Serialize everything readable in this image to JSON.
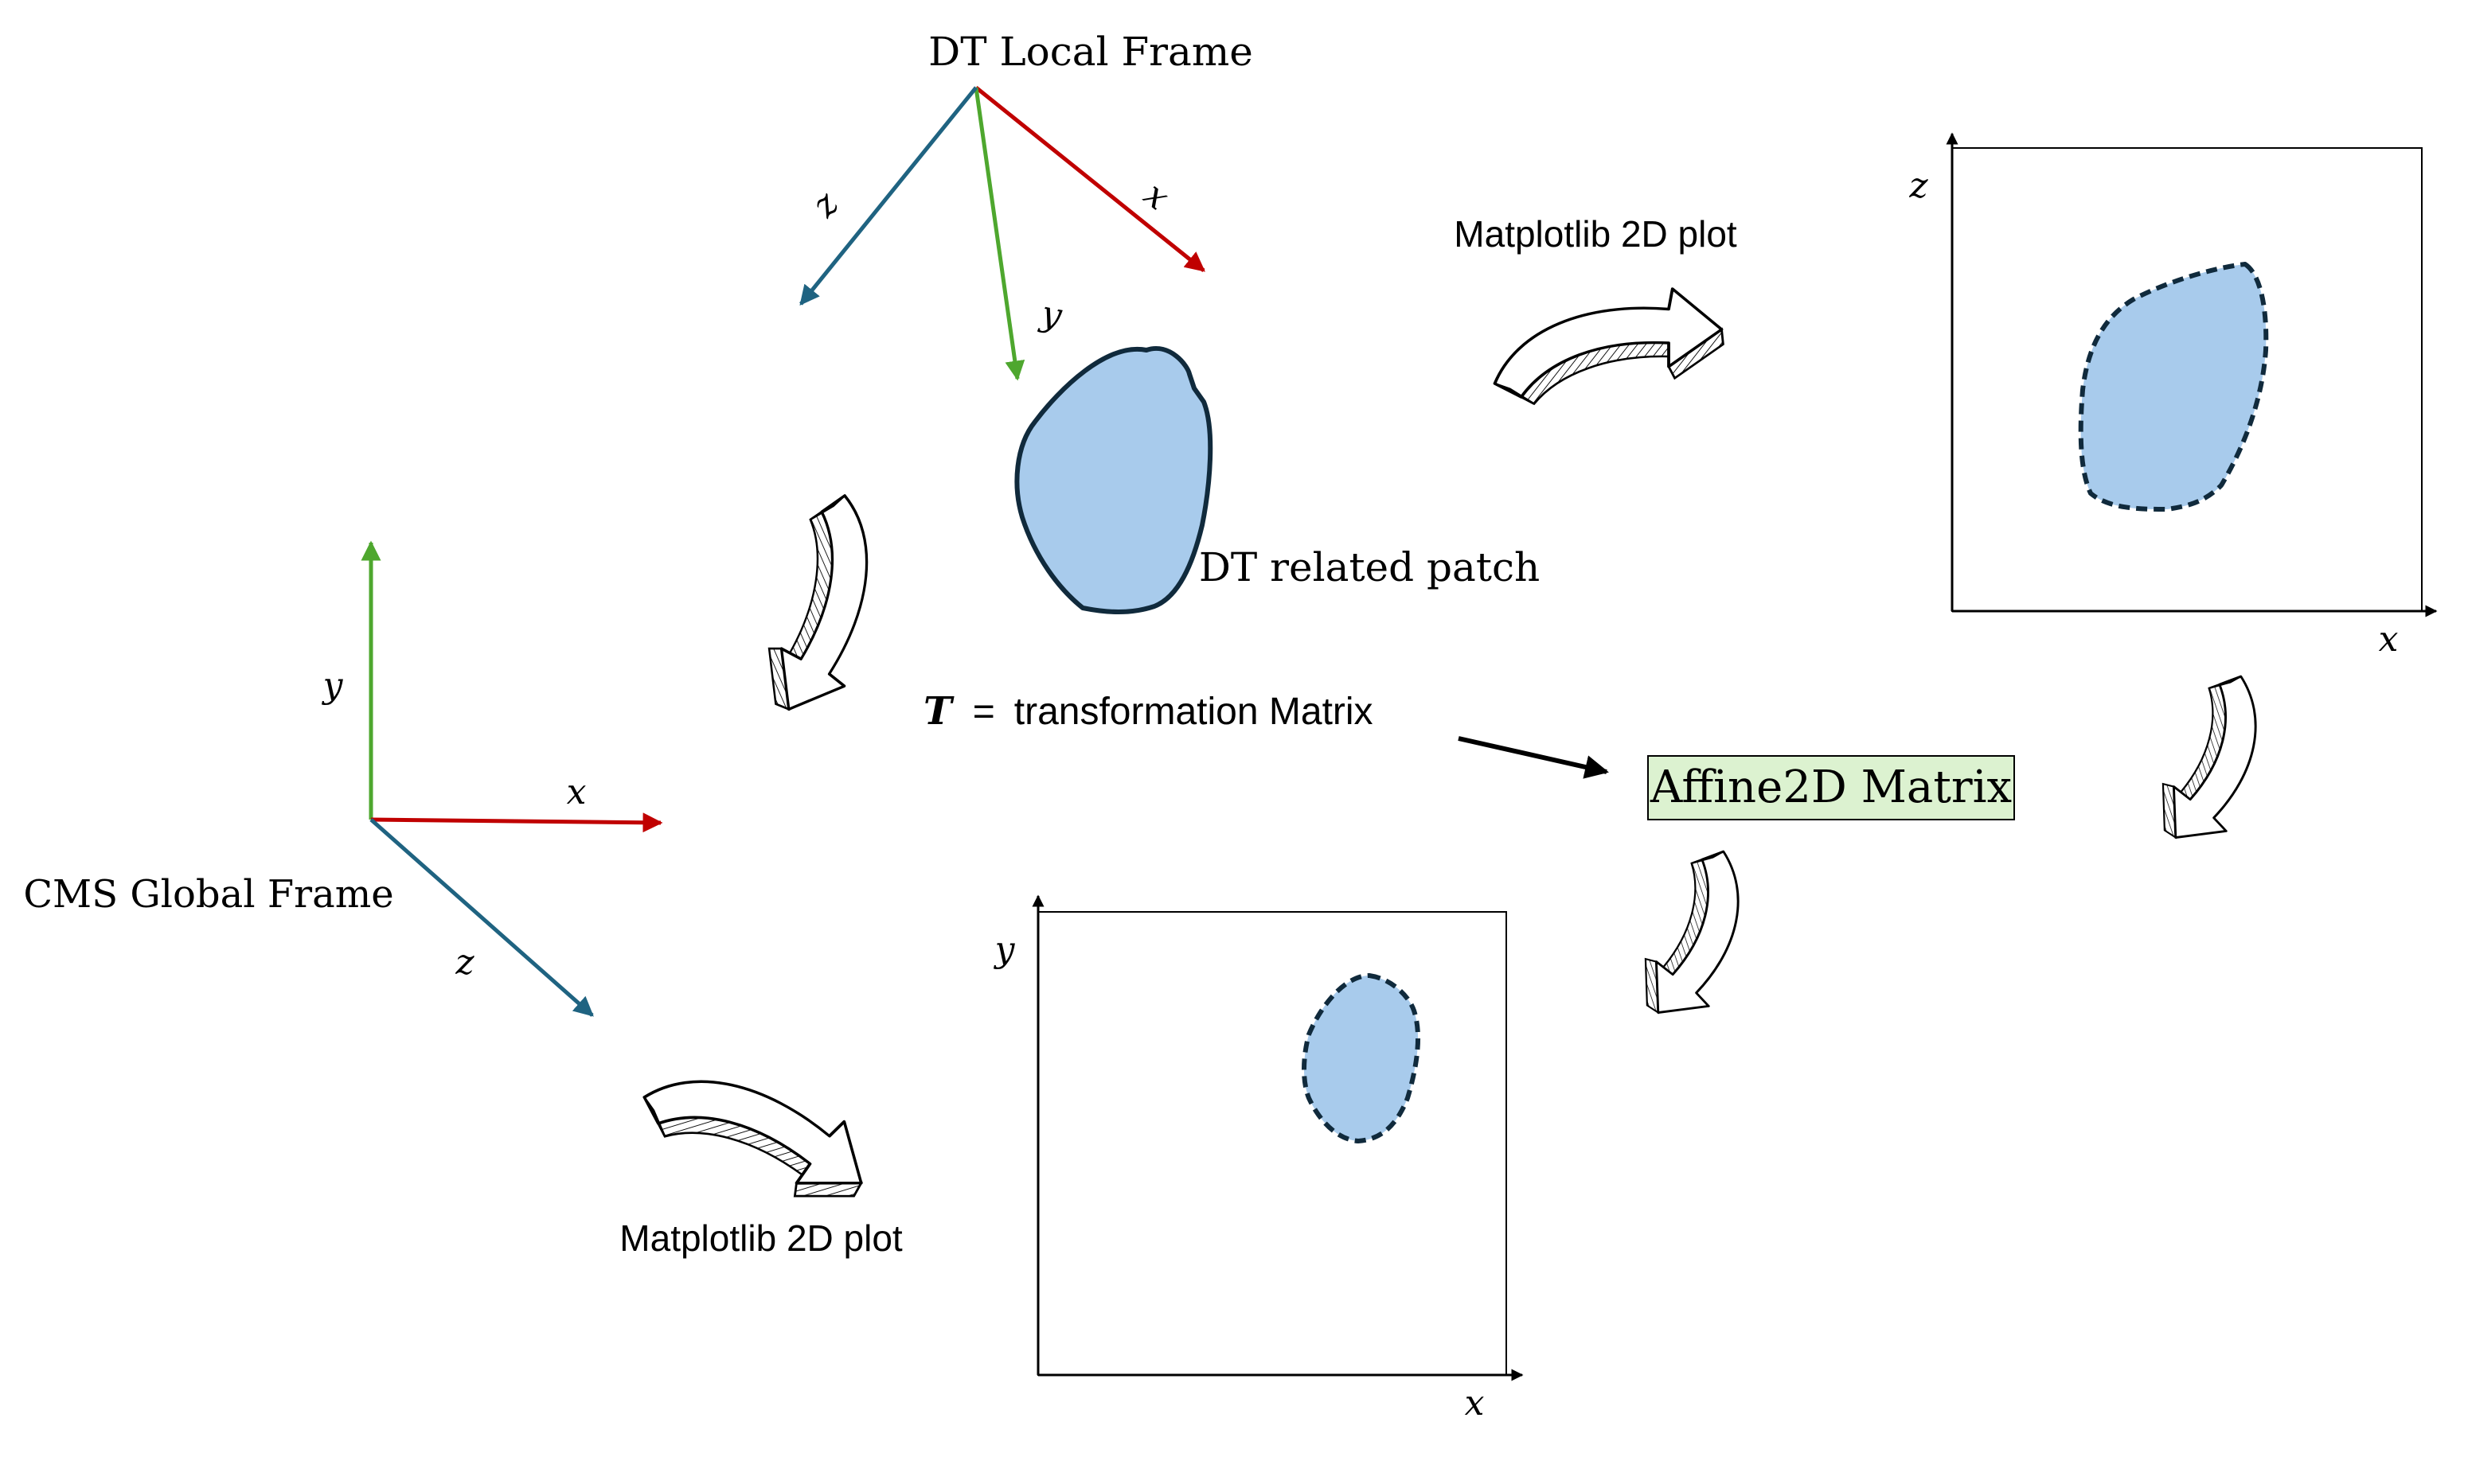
{
  "colors": {
    "x_axis": "#c00000",
    "y_axis": "#4ea72e",
    "z_axis": "#1f6381",
    "patch_fill": "#a8cbec",
    "patch_stroke": "#102a3c",
    "affine_box_fill": "#dcf2d0",
    "ink": "#000000"
  },
  "dt_local_frame": {
    "title": "DT Local Frame",
    "x_label": "x",
    "y_label": "y",
    "z_label": "z"
  },
  "cms_global_frame": {
    "title": "CMS Global Frame",
    "x_label": "x",
    "y_label": "y",
    "z_label": "z"
  },
  "patch": {
    "label": "DT related patch"
  },
  "transform": {
    "symbol": "T",
    "equals": "=",
    "description": "transformation Matrix"
  },
  "affine": {
    "label": "Affine2D Matrix"
  },
  "plot_local": {
    "caption": "Matplotlib 2D plot",
    "x_label": "x",
    "y_label": "z"
  },
  "plot_global": {
    "caption": "Matplotlib 2D plot",
    "x_label": "x",
    "y_label": "y"
  },
  "icons": [
    "curved-arrow-icon",
    "curved-arrow-icon",
    "curved-arrow-icon",
    "curved-arrow-icon",
    "curved-arrow-icon"
  ]
}
